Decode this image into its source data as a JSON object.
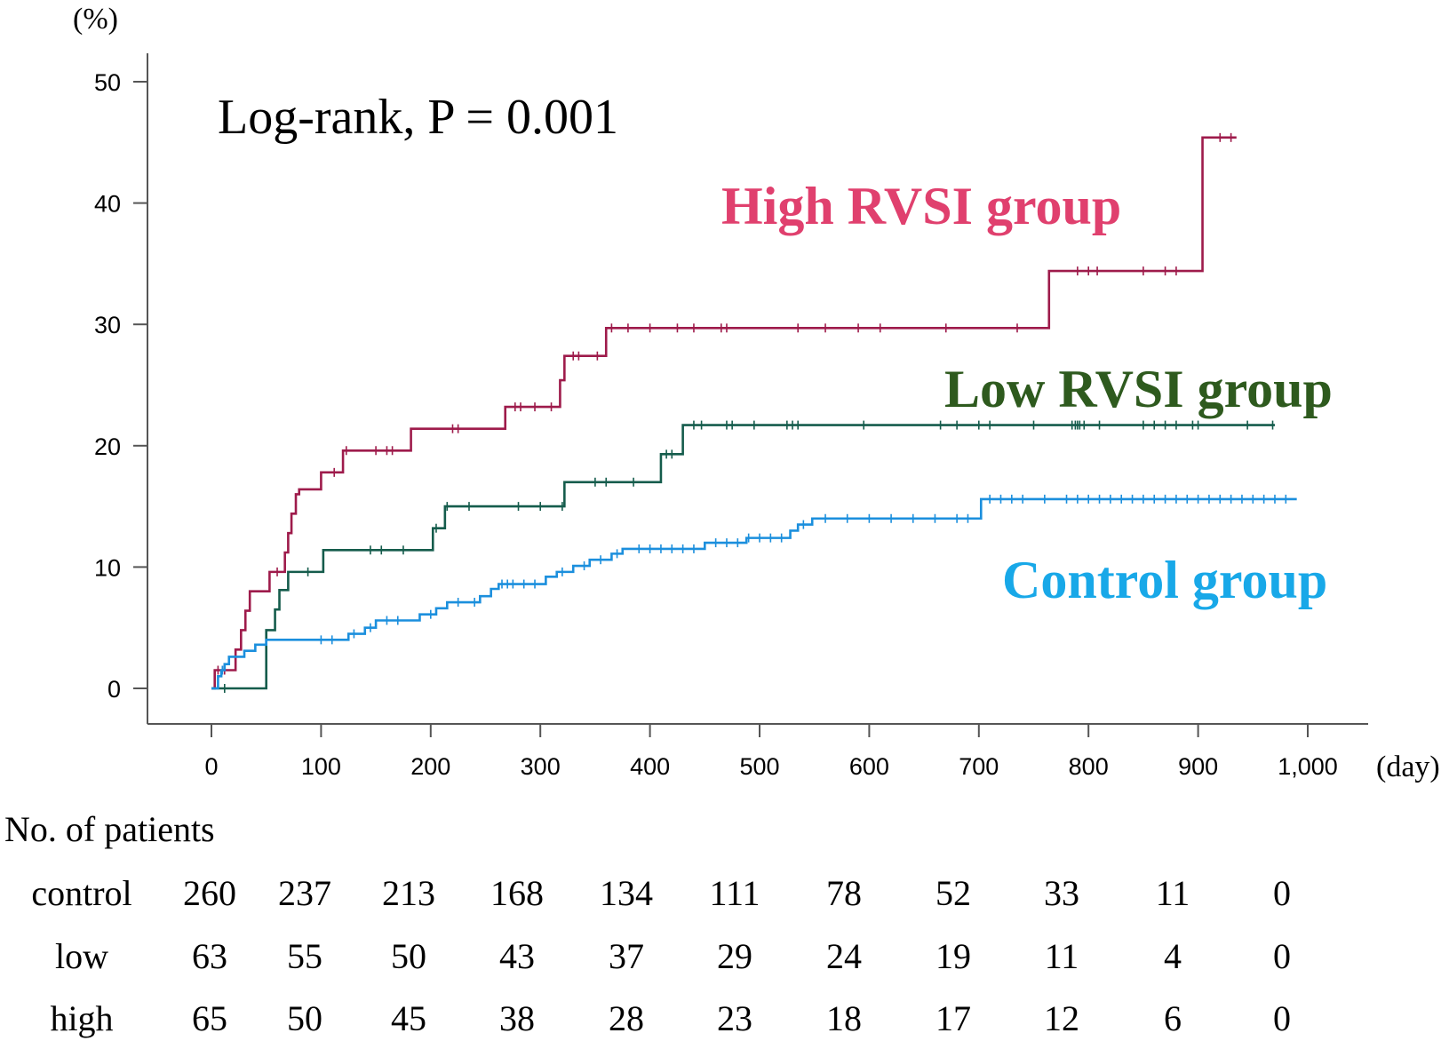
{
  "chart_data": {
    "type": "line",
    "subtype": "kaplan-meier-step",
    "annotation": "Log-rank, P = 0.001",
    "ylabel": "(%)",
    "xlabel": "(day)",
    "xlim": [
      0,
      1000
    ],
    "ylim": [
      0,
      50
    ],
    "x_ticks": [
      {
        "value": 0,
        "label": "0"
      },
      {
        "value": 100,
        "label": "100"
      },
      {
        "value": 200,
        "label": "200"
      },
      {
        "value": 300,
        "label": "300"
      },
      {
        "value": 400,
        "label": "400"
      },
      {
        "value": 500,
        "label": "500"
      },
      {
        "value": 600,
        "label": "600"
      },
      {
        "value": 700,
        "label": "700"
      },
      {
        "value": 800,
        "label": "800"
      },
      {
        "value": 900,
        "label": "900"
      },
      {
        "value": 1000,
        "label": "1,000"
      }
    ],
    "y_ticks": [
      {
        "value": 0,
        "label": "0"
      },
      {
        "value": 10,
        "label": "10"
      },
      {
        "value": 20,
        "label": "20"
      },
      {
        "value": 30,
        "label": "30"
      },
      {
        "value": 40,
        "label": "40"
      },
      {
        "value": 50,
        "label": "50"
      }
    ],
    "series": [
      {
        "name": "High RVSI group",
        "key": "high",
        "color": "#9e1b4b",
        "label_color": "#e0406e",
        "steps": [
          [
            0,
            0
          ],
          [
            3,
            1.5
          ],
          [
            15,
            1.5
          ],
          [
            22,
            3.2
          ],
          [
            27,
            4.8
          ],
          [
            31,
            6.4
          ],
          [
            35,
            8.0
          ],
          [
            50,
            8.0
          ],
          [
            53,
            9.6
          ],
          [
            64,
            9.6
          ],
          [
            67,
            11.2
          ],
          [
            70,
            12.8
          ],
          [
            73,
            14.4
          ],
          [
            77,
            16.0
          ],
          [
            80,
            16.4
          ],
          [
            98,
            16.4
          ],
          [
            100,
            17.8
          ],
          [
            117,
            17.8
          ],
          [
            120,
            19.6
          ],
          [
            180,
            19.6
          ],
          [
            182,
            21.4
          ],
          [
            265,
            21.4
          ],
          [
            268,
            23.2
          ],
          [
            316,
            23.2
          ],
          [
            318,
            25.4
          ],
          [
            322,
            27.4
          ],
          [
            358,
            27.4
          ],
          [
            360,
            29.7
          ],
          [
            762,
            29.7
          ],
          [
            764,
            34.4
          ],
          [
            902,
            34.4
          ],
          [
            904,
            45.4
          ],
          [
            935,
            45.4
          ]
        ],
        "censor": [
          6,
          10,
          12,
          60,
          112,
          123,
          150,
          160,
          165,
          220,
          225,
          277,
          282,
          295,
          310,
          330,
          335,
          352,
          365,
          380,
          400,
          425,
          440,
          465,
          470,
          535,
          560,
          590,
          610,
          670,
          735,
          790,
          800,
          808,
          850,
          870,
          880,
          920,
          930
        ]
      },
      {
        "name": "Low RVSI group",
        "key": "low",
        "color": "#155c4c",
        "label_color": "#2e5a1e",
        "steps": [
          [
            0,
            0
          ],
          [
            48,
            0
          ],
          [
            50,
            4.8
          ],
          [
            58,
            6.5
          ],
          [
            62,
            8.1
          ],
          [
            70,
            9.6
          ],
          [
            90,
            9.6
          ],
          [
            102,
            11.4
          ],
          [
            200,
            11.4
          ],
          [
            202,
            13.2
          ],
          [
            210,
            13.2
          ],
          [
            213,
            15.0
          ],
          [
            318,
            15.0
          ],
          [
            322,
            17.0
          ],
          [
            408,
            17.0
          ],
          [
            410,
            19.3
          ],
          [
            428,
            19.3
          ],
          [
            430,
            21.7
          ],
          [
            970,
            21.7
          ]
        ],
        "censor": [
          12,
          88,
          145,
          155,
          175,
          205,
          215,
          235,
          280,
          300,
          320,
          350,
          360,
          385,
          415,
          420,
          440,
          447,
          470,
          475,
          495,
          525,
          530,
          535,
          595,
          665,
          680,
          700,
          710,
          750,
          785,
          788,
          790,
          792,
          796,
          810,
          850,
          860,
          870,
          880,
          895,
          900,
          945,
          968
        ]
      },
      {
        "name": "Control group",
        "key": "control",
        "color": "#1b8fdd",
        "label_color": "#18a8e8",
        "steps": [
          [
            0,
            0
          ],
          [
            6,
            1.0
          ],
          [
            9,
            1.5
          ],
          [
            12,
            2.0
          ],
          [
            16,
            2.6
          ],
          [
            26,
            2.6
          ],
          [
            30,
            3.1
          ],
          [
            40,
            3.6
          ],
          [
            48,
            3.6
          ],
          [
            50,
            4.0
          ],
          [
            120,
            4.0
          ],
          [
            125,
            4.5
          ],
          [
            140,
            5.0
          ],
          [
            150,
            5.6
          ],
          [
            185,
            5.6
          ],
          [
            190,
            6.1
          ],
          [
            205,
            6.6
          ],
          [
            215,
            7.1
          ],
          [
            235,
            7.1
          ],
          [
            245,
            7.6
          ],
          [
            255,
            8.2
          ],
          [
            262,
            8.6
          ],
          [
            300,
            8.6
          ],
          [
            305,
            9.2
          ],
          [
            315,
            9.6
          ],
          [
            330,
            10.1
          ],
          [
            345,
            10.6
          ],
          [
            365,
            11.1
          ],
          [
            375,
            11.5
          ],
          [
            445,
            11.5
          ],
          [
            450,
            12.0
          ],
          [
            485,
            12.0
          ],
          [
            488,
            12.4
          ],
          [
            525,
            12.4
          ],
          [
            528,
            13.0
          ],
          [
            535,
            13.5
          ],
          [
            548,
            14.0
          ],
          [
            700,
            14.0
          ],
          [
            702,
            15.6
          ],
          [
            990,
            15.6
          ]
        ],
        "censor": [
          10,
          100,
          110,
          130,
          145,
          160,
          170,
          200,
          225,
          240,
          265,
          270,
          275,
          285,
          295,
          320,
          340,
          355,
          370,
          390,
          400,
          410,
          420,
          430,
          440,
          460,
          470,
          480,
          490,
          500,
          510,
          520,
          540,
          560,
          580,
          600,
          620,
          640,
          660,
          680,
          690,
          710,
          720,
          730,
          740,
          760,
          780,
          790,
          800,
          810,
          820,
          830,
          840,
          850,
          860,
          870,
          880,
          890,
          900,
          910,
          920,
          930,
          940,
          950,
          960,
          970,
          980
        ]
      }
    ],
    "risk_table": {
      "title": "No. of patients",
      "rows": [
        {
          "label": "control",
          "values": [
            "260",
            "237",
            "213",
            "168",
            "134",
            "111",
            "78",
            "52",
            "33",
            "11",
            "0"
          ]
        },
        {
          "label": "low",
          "values": [
            "63",
            "55",
            "50",
            "43",
            "37",
            "29",
            "24",
            "19",
            "11",
            "4",
            "0"
          ]
        },
        {
          "label": "high",
          "values": [
            "65",
            "50",
            "45",
            "38",
            "28",
            "23",
            "18",
            "17",
            "12",
            "6",
            "0"
          ]
        }
      ]
    }
  }
}
